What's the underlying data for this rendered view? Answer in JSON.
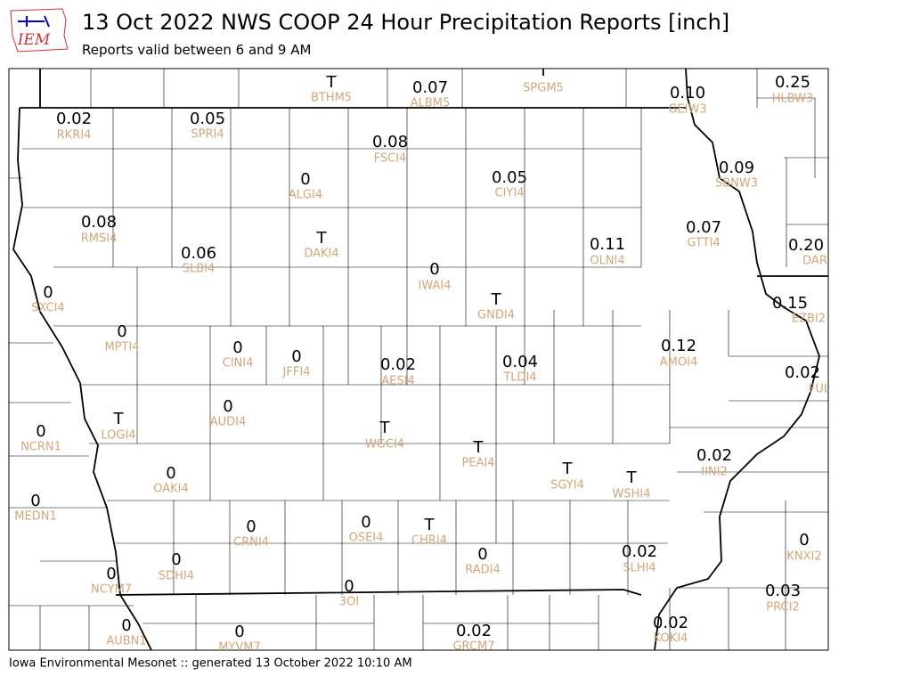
{
  "logo": "IEM",
  "title": "13 Oct 2022 NWS COOP 24 Hour Precipitation Reports [inch]",
  "subtitle": "Reports valid between 6 and 9 AM",
  "footer": "Iowa Environmental Mesonet :: generated 13 October 2022 10:10 AM",
  "stations": [
    {
      "value": "T",
      "id": "BTHM5"
    },
    {
      "value": "0.07",
      "id": "ALBM5"
    },
    {
      "value": "T",
      "id": "SPGM5"
    },
    {
      "value": "0.10",
      "id": "GEIW3"
    },
    {
      "value": "0.25",
      "id": "HLBW3"
    },
    {
      "value": "0.02",
      "id": "RKRI4"
    },
    {
      "value": "0.05",
      "id": "SPRI4"
    },
    {
      "value": "0.08",
      "id": "FSCI4"
    },
    {
      "value": "0",
      "id": "ALGI4"
    },
    {
      "value": "0.05",
      "id": "CIYI4"
    },
    {
      "value": "0.09",
      "id": "SBNW3"
    },
    {
      "value": "0.08",
      "id": "RMSI4"
    },
    {
      "value": "0.07",
      "id": "GTTI4"
    },
    {
      "value": "0.11",
      "id": "OLNI4"
    },
    {
      "value": "0.20",
      "id": "DAR"
    },
    {
      "value": "T",
      "id": "DAKI4"
    },
    {
      "value": "0.06",
      "id": "SLBI4"
    },
    {
      "value": "0",
      "id": "IWAI4"
    },
    {
      "value": "0",
      "id": "SXCI4"
    },
    {
      "value": "T",
      "id": "GNDI4"
    },
    {
      "value": "0.15",
      "id": "EZBI2"
    },
    {
      "value": "0",
      "id": "MPTI4"
    },
    {
      "value": "0",
      "id": "CINI4"
    },
    {
      "value": "0",
      "id": "JFFI4"
    },
    {
      "value": "0.12",
      "id": "AMOI4"
    },
    {
      "value": "0.02",
      "id": "AESI4"
    },
    {
      "value": "0.04",
      "id": "TLDI4"
    },
    {
      "value": "0.02",
      "id": "FUL"
    },
    {
      "value": "0",
      "id": "AUDI4"
    },
    {
      "value": "T",
      "id": "LOGI4"
    },
    {
      "value": "0",
      "id": "NCRN1"
    },
    {
      "value": "T",
      "id": "WGCI4"
    },
    {
      "value": "T",
      "id": "PEAI4"
    },
    {
      "value": "0.02",
      "id": "IINI2"
    },
    {
      "value": "T",
      "id": "SGYI4"
    },
    {
      "value": "T",
      "id": "WSHI4"
    },
    {
      "value": "0",
      "id": "OAKI4"
    },
    {
      "value": "0",
      "id": "MEDN1"
    },
    {
      "value": "0",
      "id": "CRNI4"
    },
    {
      "value": "0",
      "id": "OSEI4"
    },
    {
      "value": "T",
      "id": "CHRI4"
    },
    {
      "value": "0",
      "id": "KNXI2"
    },
    {
      "value": "0.02",
      "id": "SLHI4"
    },
    {
      "value": "0",
      "id": "RADI4"
    },
    {
      "value": "0",
      "id": "SDHI4"
    },
    {
      "value": "0",
      "id": "NCYM7"
    },
    {
      "value": "0",
      "id": "3OI"
    },
    {
      "value": "0.03",
      "id": "PRCI2"
    },
    {
      "value": "0",
      "id": "AUBN1"
    },
    {
      "value": "0",
      "id": "MYVM7"
    },
    {
      "value": "0.02",
      "id": "GRCM7"
    },
    {
      "value": "0.02",
      "id": "KOKI4"
    }
  ]
}
